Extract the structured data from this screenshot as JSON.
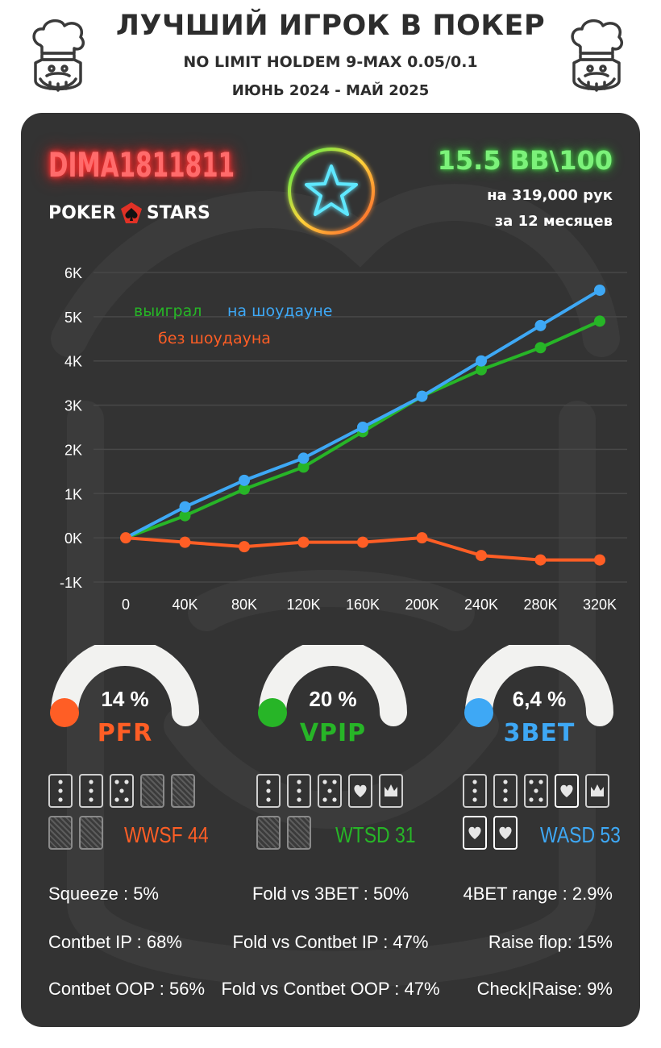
{
  "header": {
    "title": "ЛУЧШИЙ ИГРОК В ПОКЕР",
    "subtitle": "NO LIMIT HOLDEM 9-MAX 0.05/0.1",
    "period": "ИЮНЬ 2024 - МАЙ 2025"
  },
  "player": {
    "name": "DIMA1811811",
    "room_logo_left": "POKER",
    "room_logo_right": "STARS",
    "winrate": "15.5 BB\\100",
    "hands": "на 319,000 рук",
    "months": "за  12 месяцев"
  },
  "colors": {
    "won": "#27b527",
    "showdown": "#3ea8f5",
    "nonshowdown": "#ff5e25",
    "card_bg": "#333333"
  },
  "chart_data": {
    "type": "line",
    "x": [
      0,
      40000,
      80000,
      120000,
      160000,
      200000,
      240000,
      280000,
      320000
    ],
    "x_tick_labels": [
      "0",
      "40K",
      "80K",
      "120K",
      "160K",
      "200K",
      "240K",
      "280K",
      "320K"
    ],
    "y_tick_values": [
      -1000,
      0,
      1000,
      2000,
      3000,
      4000,
      5000,
      6000
    ],
    "y_tick_labels": [
      "-1K",
      "0K",
      "1K",
      "2K",
      "3K",
      "4K",
      "5K",
      "6K"
    ],
    "ylim": [
      -1000,
      6000
    ],
    "grid": true,
    "legend": "top-left",
    "series": [
      {
        "name": "выиграл",
        "color": "#27b527",
        "values": [
          0,
          500,
          1100,
          1600,
          2400,
          3200,
          3800,
          4300,
          4900
        ]
      },
      {
        "name": "на шоудауне",
        "color": "#3ea8f5",
        "values": [
          0,
          700,
          1300,
          1800,
          2500,
          3200,
          4000,
          4800,
          5600
        ]
      },
      {
        "name": "без шоудауна",
        "color": "#ff5e25",
        "values": [
          0,
          -100,
          -200,
          -100,
          -100,
          0,
          -400,
          -500,
          -500
        ]
      }
    ]
  },
  "gauges": [
    {
      "name": "PFR",
      "value": "14 %",
      "fraction": 0.14,
      "color": "#ff5e25"
    },
    {
      "name": "VPIP",
      "value": "20 %",
      "fraction": 0.2,
      "color": "#27b527"
    },
    {
      "name": "3BET",
      "value": "6,4 %",
      "fraction": 0.064,
      "color": "#3ea8f5"
    }
  ],
  "wide_stats": [
    {
      "label": "WWSF 44",
      "color": "#ff5e25"
    },
    {
      "label": "WTSD 31",
      "color": "#27b527"
    },
    {
      "label": "WASD 53",
      "color": "#3ea8f5"
    }
  ],
  "stats": {
    "col1": [
      "Squeeze : 5%",
      "Contbet IP : 68%",
      "Contbet OOP : 56%"
    ],
    "col2": [
      "Fold vs 3BET : 50%",
      "Fold vs Contbet IP : 47%",
      "Fold vs Contbet OOP : 47%"
    ],
    "col3": [
      "4BET range : 2.9%",
      "Raise flop: 15%",
      "Check|Raise: 9%"
    ]
  }
}
